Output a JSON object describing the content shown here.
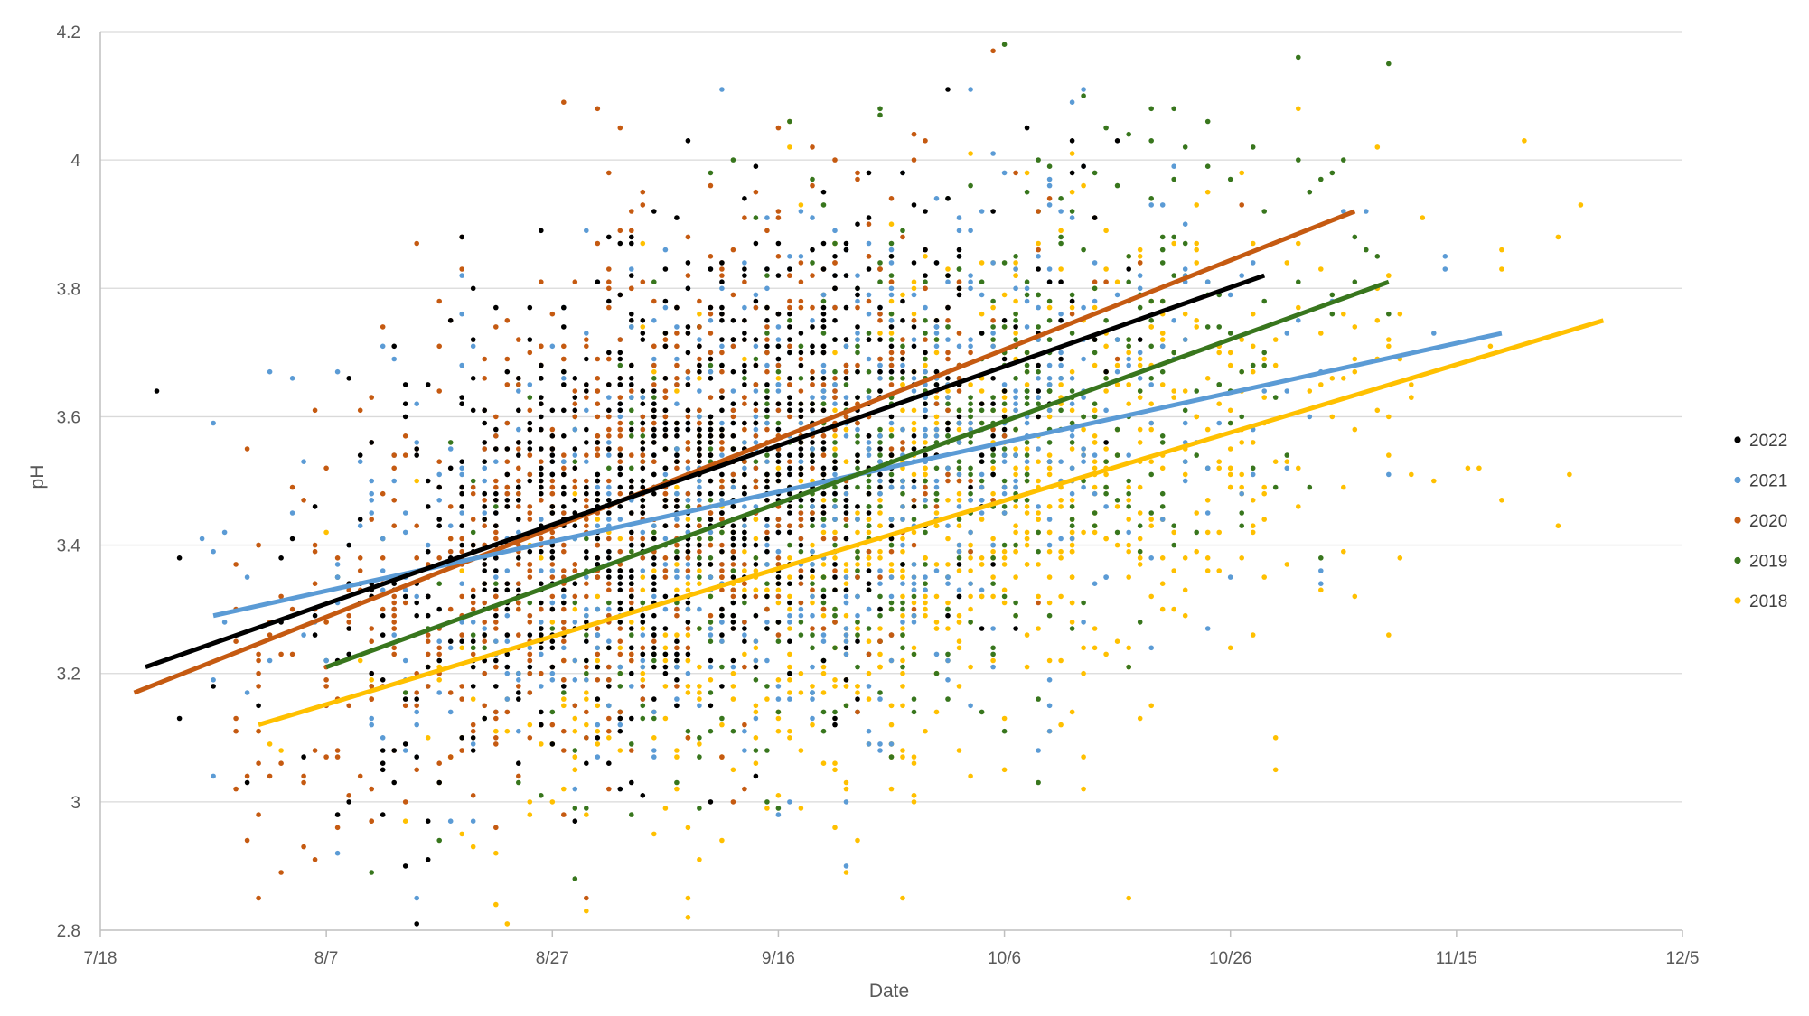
{
  "chart_data": {
    "type": "scatter",
    "title": "",
    "xlabel": "Date",
    "ylabel": "pH",
    "x_ticks": [
      "7/18",
      "8/7",
      "8/27",
      "9/16",
      "10/6",
      "10/26",
      "11/15",
      "12/5"
    ],
    "y_ticks": [
      "2.8",
      "3",
      "3.2",
      "3.4",
      "3.6",
      "3.8",
      "4",
      "4.2"
    ],
    "x_range_days_from_jul18": [
      0,
      140
    ],
    "ylim": [
      2.8,
      4.2
    ],
    "grid": "horizontal",
    "legend_position": "right",
    "series": [
      {
        "name": "2022",
        "color": "#000000",
        "point_count": 900,
        "x_mean": 52,
        "x_sd": 15,
        "x_min": 4,
        "x_max": 104,
        "trend": {
          "x_start": 4,
          "y_start": 3.21,
          "x_end": 103,
          "y_end": 3.82
        }
      },
      {
        "name": "2021",
        "color": "#5b9bd5",
        "point_count": 900,
        "x_mean": 62,
        "x_sd": 20,
        "x_min": 9,
        "x_max": 125,
        "trend": {
          "x_start": 10,
          "y_start": 3.29,
          "x_end": 124,
          "y_end": 3.73
        }
      },
      {
        "name": "2020",
        "color": "#c55a11",
        "point_count": 900,
        "x_mean": 48,
        "x_sd": 16,
        "x_min": 12,
        "x_max": 111,
        "trend": {
          "x_start": 3,
          "y_start": 3.17,
          "x_end": 111,
          "y_end": 3.92
        }
      },
      {
        "name": "2019",
        "color": "#38761d",
        "point_count": 800,
        "x_mean": 68,
        "x_sd": 17,
        "x_min": 20,
        "x_max": 114,
        "trend": {
          "x_start": 20,
          "y_start": 3.21,
          "x_end": 114,
          "y_end": 3.81
        }
      },
      {
        "name": "2018",
        "color": "#ffc000",
        "point_count": 1100,
        "x_mean": 72,
        "x_sd": 20,
        "x_min": 14,
        "x_max": 133,
        "trend": {
          "x_start": 14,
          "y_start": 3.12,
          "x_end": 133,
          "y_end": 3.75
        }
      }
    ]
  }
}
